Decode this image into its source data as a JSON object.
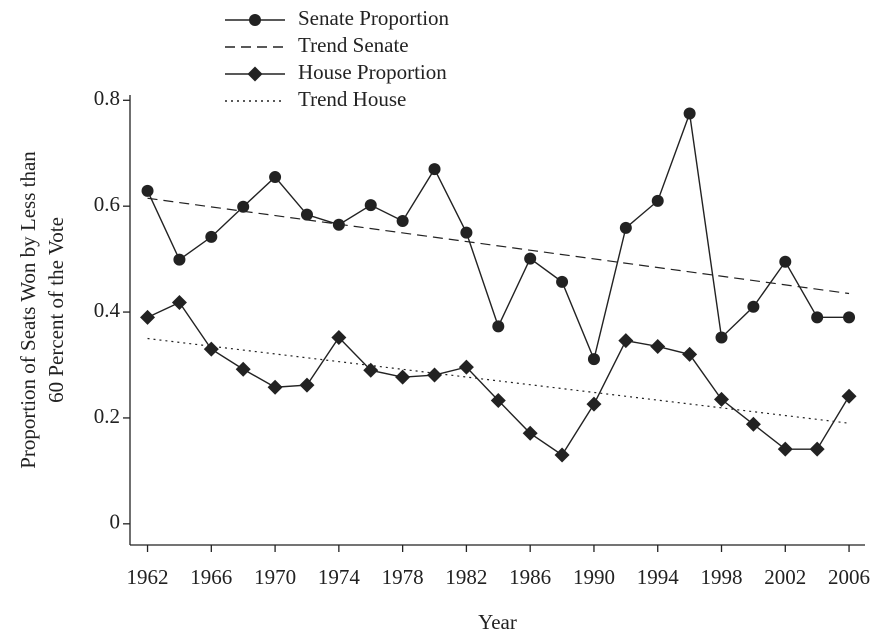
{
  "chart_data": {
    "type": "line",
    "ylabel": [
      "Proportion of Seats Won by Less than",
      "60 Percent of the Vote"
    ],
    "xlabel": "Year",
    "x": [
      1962,
      1964,
      1966,
      1968,
      1970,
      1972,
      1974,
      1976,
      1978,
      1980,
      1982,
      1984,
      1986,
      1988,
      1990,
      1992,
      1994,
      1996,
      1998,
      2000,
      2002,
      2004,
      2006
    ],
    "series": [
      {
        "name": "Senate Proportion",
        "color": "#222222",
        "style": "solid",
        "marker": "circle",
        "values": [
          0.629,
          0.499,
          0.542,
          0.599,
          0.655,
          0.584,
          0.565,
          0.602,
          0.572,
          0.67,
          0.55,
          0.373,
          0.501,
          0.457,
          0.311,
          0.559,
          0.61,
          0.775,
          0.352,
          0.41,
          0.495,
          0.39,
          0.39
        ]
      },
      {
        "name": "Trend Senate",
        "color": "#222222",
        "style": "dashed",
        "x": [
          1962,
          2006
        ],
        "values": [
          0.615,
          0.435
        ]
      },
      {
        "name": "House Proportion",
        "color": "#222222",
        "style": "solid",
        "marker": "diamond",
        "values": [
          0.39,
          0.418,
          0.33,
          0.292,
          0.258,
          0.262,
          0.352,
          0.29,
          0.277,
          0.281,
          0.296,
          0.233,
          0.171,
          0.13,
          0.226,
          0.346,
          0.335,
          0.32,
          0.235,
          0.188,
          0.141,
          0.141,
          0.241
        ]
      },
      {
        "name": "Trend House",
        "color": "#222222",
        "style": "dotted",
        "x": [
          1962,
          2006
        ],
        "values": [
          0.35,
          0.19
        ]
      }
    ],
    "xlim": [
      1960.9,
      2007.0
    ],
    "xticks": [
      1962,
      1966,
      1970,
      1974,
      1978,
      1982,
      1986,
      1990,
      1994,
      1998,
      2002,
      2006
    ],
    "ylim": [
      -0.04,
      0.81
    ],
    "yticks": [
      0,
      0.2,
      0.4,
      0.6,
      0.8
    ],
    "legend": "top-left"
  }
}
